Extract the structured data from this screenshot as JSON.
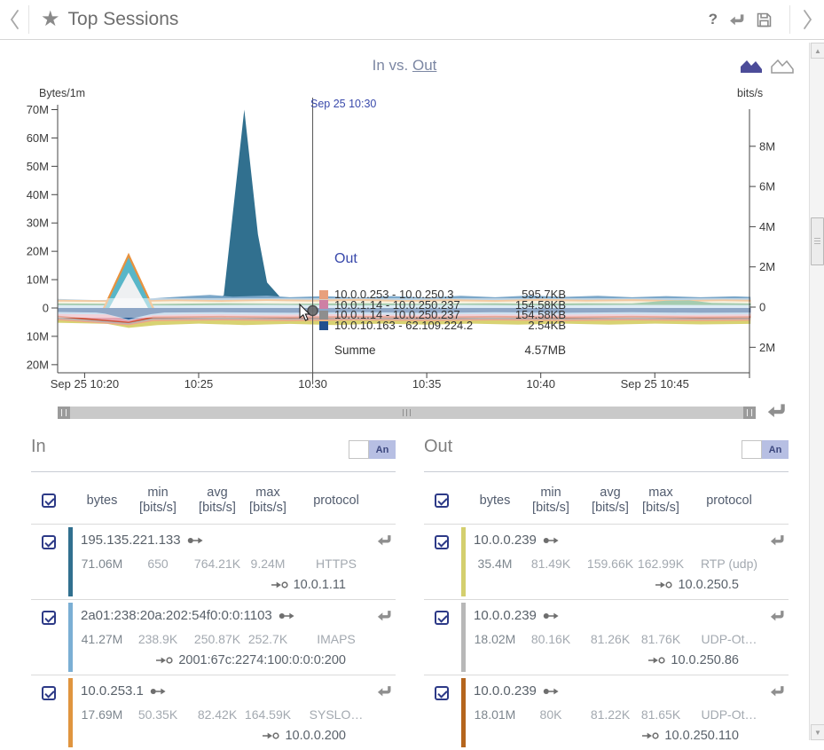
{
  "header": {
    "title": "Top Sessions",
    "help_label": "?"
  },
  "chart": {
    "title_prefix": "In vs. ",
    "title_link": "Out"
  },
  "chart_data": {
    "type": "area",
    "title": "In vs. Out",
    "y_left": {
      "unit": "Bytes/1m",
      "ticks": [
        "70M",
        "60M",
        "50M",
        "40M",
        "30M",
        "20M",
        "10M",
        "0",
        "10M",
        "20M"
      ],
      "tick_values_M": [
        70,
        60,
        50,
        40,
        30,
        20,
        10,
        0,
        -10,
        -20
      ]
    },
    "y_right": {
      "unit": "bits/s",
      "ticks": [
        "8M",
        "6M",
        "4M",
        "2M",
        "0",
        "2M"
      ],
      "tick_values_M": [
        8,
        6,
        4,
        2,
        0,
        -2
      ]
    },
    "x_axis": {
      "ticks": [
        "Sep 25 10:20",
        "10:25",
        "10:30",
        "10:35",
        "10:40",
        "Sep 25 10:45"
      ],
      "tick_minutes": [
        0,
        5,
        10,
        15,
        20,
        25
      ],
      "range_minutes": [
        -1.2,
        29.2
      ]
    },
    "crosshair": {
      "label": "Sep 25 10:30",
      "minute": 10
    },
    "tooltip": {
      "header": "Out",
      "rows": [
        {
          "color": "#e8a07c",
          "name": "10.0.0.253 - 10.0.250.3",
          "value": "595.7KB"
        },
        {
          "color": "#ce7fa4",
          "name": "10.0.1.14 - 10.0.250.237",
          "value": "154.58KB"
        },
        {
          "color": "#8e8e8e",
          "name": "10.0.1.14 - 10.0.250.237",
          "value": "154.58KB"
        },
        {
          "color": "#20508f",
          "name": "10.0.10.163 - 62.109.224.2",
          "value": "2.54KB"
        }
      ],
      "total_label": "Summe",
      "total_value": "4.57MB"
    },
    "areas": [
      {
        "name": "in-main-spike",
        "color": "#31708f",
        "points": [
          [
            -1.2,
            0.6
          ],
          [
            2,
            0.6
          ],
          [
            4,
            0.8
          ],
          [
            5,
            1.2
          ],
          [
            5.6,
            2.2
          ],
          [
            6.1,
            4.5
          ],
          [
            7,
            70
          ],
          [
            7.6,
            26
          ],
          [
            8,
            9
          ],
          [
            8.6,
            3.6
          ],
          [
            9.4,
            2.8
          ],
          [
            10.5,
            2.4
          ],
          [
            12,
            2.2
          ],
          [
            29.2,
            2.2
          ]
        ]
      },
      {
        "name": "in-band-lightblue",
        "color": "#7ba7c9",
        "points": [
          [
            -1.2,
            3.2
          ],
          [
            0.5,
            2.8
          ],
          [
            1.9,
            3.0
          ],
          [
            3,
            3.4
          ],
          [
            4.5,
            4.2
          ],
          [
            5.5,
            4.6
          ],
          [
            6.5,
            4.0
          ],
          [
            8,
            4.4
          ],
          [
            9,
            3.8
          ],
          [
            10.5,
            4.2
          ],
          [
            12,
            3.6
          ],
          [
            13.5,
            4.2
          ],
          [
            15,
            3.7
          ],
          [
            16.5,
            4.3
          ],
          [
            18,
            3.8
          ],
          [
            19.5,
            4.4
          ],
          [
            21,
            3.9
          ],
          [
            22.5,
            4.3
          ],
          [
            24,
            3.8
          ],
          [
            25.5,
            4.2
          ],
          [
            27,
            3.8
          ],
          [
            28.5,
            4.1
          ],
          [
            29.2,
            3.9
          ]
        ]
      },
      {
        "name": "in-band-orange",
        "color": "#e8923f",
        "points": [
          [
            -1.2,
            2.9
          ],
          [
            2,
            2.6
          ],
          [
            4,
            3.0
          ],
          [
            6,
            2.8
          ],
          [
            8,
            3.1
          ],
          [
            10,
            2.9
          ],
          [
            12,
            3.2
          ],
          [
            14,
            2.8
          ],
          [
            16,
            3.1
          ],
          [
            18,
            2.8
          ],
          [
            20,
            3.2
          ],
          [
            22,
            2.9
          ],
          [
            24,
            3.1
          ],
          [
            26,
            2.8
          ],
          [
            28,
            3.0
          ],
          [
            29.2,
            2.9
          ]
        ]
      },
      {
        "name": "in-band-cream",
        "color": "#f0e7c4",
        "points": [
          [
            -1.2,
            2.3
          ],
          [
            2,
            2.1
          ],
          [
            4,
            2.4
          ],
          [
            6,
            2.2
          ],
          [
            8,
            2.5
          ],
          [
            10,
            2.3
          ],
          [
            12,
            2.5
          ],
          [
            14,
            2.2
          ],
          [
            16,
            2.4
          ],
          [
            18,
            2.2
          ],
          [
            20,
            2.5
          ],
          [
            22,
            2.3
          ],
          [
            24,
            2.4
          ],
          [
            26,
            2.2
          ],
          [
            28,
            2.4
          ],
          [
            29.2,
            2.3
          ]
        ]
      },
      {
        "name": "in-band-green",
        "color": "#4b9960",
        "points": [
          [
            -1.2,
            1.6
          ],
          [
            3,
            1.4
          ],
          [
            6,
            1.7
          ],
          [
            9,
            1.5
          ],
          [
            12,
            1.7
          ],
          [
            15,
            1.5
          ],
          [
            18,
            1.7
          ],
          [
            20,
            1.5
          ],
          [
            22,
            1.7
          ],
          [
            24,
            1.6
          ],
          [
            25.5,
            2.6
          ],
          [
            26.5,
            2.7
          ],
          [
            27.5,
            1.8
          ],
          [
            29.2,
            1.6
          ]
        ]
      },
      {
        "name": "in-band-cyan",
        "color": "#bcd9ea",
        "points": [
          [
            -1.2,
            1.0
          ],
          [
            4,
            0.9
          ],
          [
            8,
            1.1
          ],
          [
            12,
            0.9
          ],
          [
            16,
            1.1
          ],
          [
            20,
            0.9
          ],
          [
            24,
            1.1
          ],
          [
            29.2,
            1.0
          ]
        ]
      },
      {
        "name": "in-spike2-orange",
        "color": "#e8923f",
        "points": [
          [
            0.8,
            0
          ],
          [
            1.93,
            19.5
          ],
          [
            3.05,
            0
          ]
        ]
      },
      {
        "name": "in-spike2-teal",
        "color": "#58b6c8",
        "points": [
          [
            0.9,
            0
          ],
          [
            1.93,
            17.8
          ],
          [
            2.95,
            0
          ]
        ]
      },
      {
        "name": "in-spike2-white",
        "color": "#eef0f2",
        "points": [
          [
            1.08,
            0
          ],
          [
            1.93,
            12.5
          ],
          [
            2.78,
            0
          ]
        ]
      },
      {
        "name": "out-band-khaki",
        "color": "#d8d272",
        "points": [
          [
            -1.2,
            -5.2
          ],
          [
            1,
            -5.6
          ],
          [
            1.93,
            -7.0
          ],
          [
            3.2,
            -6.0
          ],
          [
            5,
            -5.5
          ],
          [
            7,
            -6.0
          ],
          [
            9,
            -5.6
          ],
          [
            11,
            -6.0
          ],
          [
            13,
            -5.5
          ],
          [
            15,
            -5.9
          ],
          [
            17,
            -5.5
          ],
          [
            19,
            -5.9
          ],
          [
            21,
            -5.5
          ],
          [
            23,
            -5.9
          ],
          [
            25,
            -5.5
          ],
          [
            27,
            -5.8
          ],
          [
            29.2,
            -5.6
          ]
        ]
      },
      {
        "name": "out-band-salmon",
        "color": "#eda68a",
        "points": [
          [
            -1.2,
            -4.3
          ],
          [
            1.93,
            -6.1
          ],
          [
            3,
            -4.6
          ],
          [
            6,
            -4.4
          ],
          [
            9,
            -4.6
          ],
          [
            12,
            -4.4
          ],
          [
            15,
            -4.6
          ],
          [
            18,
            -4.4
          ],
          [
            21,
            -4.6
          ],
          [
            24,
            -4.4
          ],
          [
            27,
            -4.6
          ],
          [
            29.2,
            -4.5
          ]
        ]
      },
      {
        "name": "out-band-gray",
        "color": "#b4b4b4",
        "points": [
          [
            -1.2,
            -3.8
          ],
          [
            1.93,
            -5.7
          ],
          [
            3,
            -4.1
          ],
          [
            6,
            -3.9
          ],
          [
            9,
            -4.1
          ],
          [
            12,
            -3.9
          ],
          [
            15,
            -4.1
          ],
          [
            18,
            -3.9
          ],
          [
            21,
            -4.1
          ],
          [
            24,
            -3.9
          ],
          [
            27,
            -4.1
          ],
          [
            29.2,
            -4.0
          ]
        ]
      },
      {
        "name": "out-band-red",
        "color": "#cf4e32",
        "points": [
          [
            -1.2,
            -3.3
          ],
          [
            1.93,
            -5.3
          ],
          [
            3,
            -3.6
          ],
          [
            6,
            -3.4
          ],
          [
            9,
            -3.6
          ],
          [
            12,
            -3.4
          ],
          [
            15,
            -3.6
          ],
          [
            18,
            -3.4
          ],
          [
            21,
            -3.6
          ],
          [
            24,
            -3.4
          ],
          [
            27,
            -3.6
          ],
          [
            29.2,
            -3.5
          ]
        ]
      },
      {
        "name": "out-band-pink",
        "color": "#e4a3b0",
        "points": [
          [
            -1.2,
            -2.7
          ],
          [
            1.93,
            -4.9
          ],
          [
            3,
            -3.0
          ],
          [
            6,
            -2.8
          ],
          [
            9,
            -3.0
          ],
          [
            12,
            -2.8
          ],
          [
            15,
            -3.0
          ],
          [
            18,
            -2.8
          ],
          [
            21,
            -3.0
          ],
          [
            24,
            -2.8
          ],
          [
            27,
            -3.0
          ],
          [
            29.2,
            -2.9
          ]
        ]
      },
      {
        "name": "out-band-lightblue",
        "color": "#9dc3e0",
        "points": [
          [
            -1.2,
            -2.1
          ],
          [
            1,
            -2.3
          ],
          [
            1.93,
            -4.4
          ],
          [
            3,
            -2.5
          ],
          [
            5,
            -2.2
          ],
          [
            8,
            -2.4
          ],
          [
            11,
            -2.2
          ],
          [
            14,
            -2.4
          ],
          [
            17,
            -2.2
          ],
          [
            20,
            -2.4
          ],
          [
            23,
            -2.2
          ],
          [
            26,
            -2.4
          ],
          [
            29.2,
            -2.3
          ]
        ]
      },
      {
        "name": "out-band-navy",
        "color": "#1f4e8c",
        "points": [
          [
            -1.2,
            -1.4
          ],
          [
            0.5,
            -1.6
          ],
          [
            0.9,
            -2.0
          ],
          [
            1.93,
            -4.0
          ],
          [
            2.9,
            -2.2
          ],
          [
            3.5,
            -1.6
          ],
          [
            6,
            -1.5
          ],
          [
            9,
            -1.7
          ],
          [
            12,
            -1.5
          ],
          [
            15,
            -1.7
          ],
          [
            18,
            -1.5
          ],
          [
            21,
            -1.7
          ],
          [
            24,
            -1.5
          ],
          [
            27,
            -1.7
          ],
          [
            29.2,
            -1.6
          ]
        ]
      }
    ]
  },
  "tables": {
    "header_cols": [
      {
        "top": "bytes",
        "bottom": ""
      },
      {
        "top": "min",
        "bottom": "[bits/s]"
      },
      {
        "top": "avg",
        "bottom": "[bits/s]"
      },
      {
        "top": "max",
        "bottom": "[bits/s]"
      },
      {
        "top": "protocol",
        "bottom": ""
      }
    ],
    "in": {
      "title": "In",
      "toggle_label": "An",
      "rows": [
        {
          "color": "#31708f",
          "src": "195.135.221.133",
          "bytes": "71.06M",
          "min": "650",
          "avg": "764.21K",
          "max": "9.24M",
          "protocol": "HTTPS",
          "dst": "10.0.1.11"
        },
        {
          "color": "#7bafd4",
          "src": "2a01:238:20a:202:54f0:0:0:1103",
          "bytes": "41.27M",
          "min": "238.9K",
          "avg": "250.87K",
          "max": "252.7K",
          "protocol": "IMAPS",
          "dst": "2001:67c:2274:100:0:0:0:200"
        },
        {
          "color": "#e0953f",
          "src": "10.0.253.1",
          "bytes": "17.69M",
          "min": "50.35K",
          "avg": "82.42K",
          "max": "164.59K",
          "protocol": "SYSLO…",
          "dst": "10.0.0.200"
        }
      ]
    },
    "out": {
      "title": "Out",
      "toggle_label": "An",
      "rows": [
        {
          "color": "#d4cf6e",
          "src": "10.0.0.239",
          "bytes": "35.4M",
          "min": "81.49K",
          "avg": "159.66K",
          "max": "162.99K",
          "protocol": "RTP (udp)",
          "dst": "10.0.250.5"
        },
        {
          "color": "#b8b8b8",
          "src": "10.0.0.239",
          "bytes": "18.02M",
          "min": "80.16K",
          "avg": "81.26K",
          "max": "81.76K",
          "protocol": "UDP-Ot…",
          "dst": "10.0.250.86"
        },
        {
          "color": "#b5651d",
          "src": "10.0.0.239",
          "bytes": "18.01M",
          "min": "80K",
          "avg": "81.22K",
          "max": "81.65K",
          "protocol": "UDP-Ot…",
          "dst": "10.0.250.110"
        }
      ]
    }
  }
}
